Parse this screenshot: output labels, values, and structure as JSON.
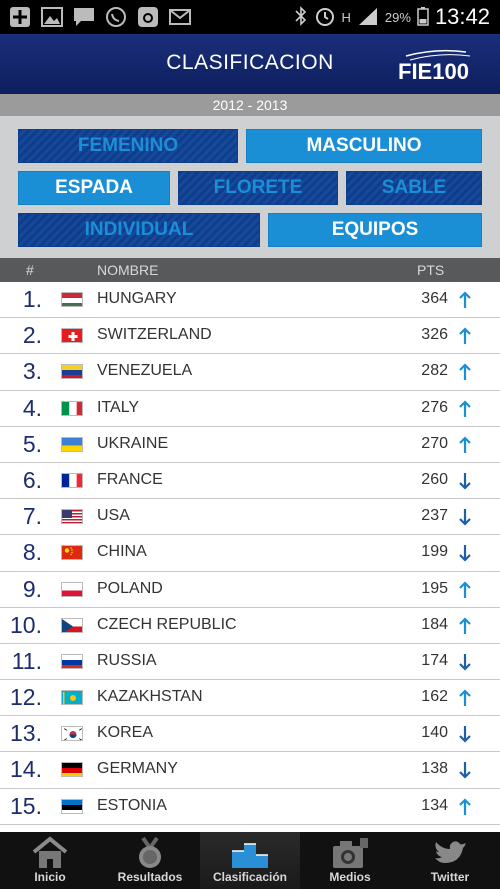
{
  "status_bar": {
    "battery": "29%",
    "time": "13:42",
    "network": "H"
  },
  "header": {
    "title": "CLASIFICACION",
    "logo_text": "FIE100"
  },
  "season": "2012 - 2013",
  "filters": {
    "gender": [
      {
        "label": "FEMENINO",
        "active": false
      },
      {
        "label": "MASCULINO",
        "active": true
      }
    ],
    "weapon": [
      {
        "label": "ESPADA",
        "active": true
      },
      {
        "label": "FLORETE",
        "active": false
      },
      {
        "label": "SABLE",
        "active": false
      }
    ],
    "type": [
      {
        "label": "INDIVIDUAL",
        "active": false
      },
      {
        "label": "EQUIPOS",
        "active": true
      }
    ]
  },
  "columns": {
    "rank": "#",
    "name": "NOMBRE",
    "points": "PTS"
  },
  "ranking": [
    {
      "rank": "1.",
      "name": "HUNGARY",
      "points": "364",
      "trend": "up",
      "flag": "hungary"
    },
    {
      "rank": "2.",
      "name": "SWITZERLAND",
      "points": "326",
      "trend": "up",
      "flag": "switzerland"
    },
    {
      "rank": "3.",
      "name": "VENEZUELA",
      "points": "282",
      "trend": "up",
      "flag": "venezuela"
    },
    {
      "rank": "4.",
      "name": "ITALY",
      "points": "276",
      "trend": "up",
      "flag": "italy"
    },
    {
      "rank": "5.",
      "name": "UKRAINE",
      "points": "270",
      "trend": "up",
      "flag": "ukraine"
    },
    {
      "rank": "6.",
      "name": "FRANCE",
      "points": "260",
      "trend": "down",
      "flag": "france"
    },
    {
      "rank": "7.",
      "name": "USA",
      "points": "237",
      "trend": "down",
      "flag": "usa"
    },
    {
      "rank": "8.",
      "name": "CHINA",
      "points": "199",
      "trend": "down",
      "flag": "china"
    },
    {
      "rank": "9.",
      "name": "POLAND",
      "points": "195",
      "trend": "up",
      "flag": "poland"
    },
    {
      "rank": "10.",
      "name": "CZECH REPUBLIC",
      "points": "184",
      "trend": "up",
      "flag": "czech"
    },
    {
      "rank": "11.",
      "name": "RUSSIA",
      "points": "174",
      "trend": "down",
      "flag": "russia"
    },
    {
      "rank": "12.",
      "name": "KAZAKHSTAN",
      "points": "162",
      "trend": "up",
      "flag": "kazakhstan"
    },
    {
      "rank": "13.",
      "name": "KOREA",
      "points": "140",
      "trend": "down",
      "flag": "korea"
    },
    {
      "rank": "14.",
      "name": "GERMANY",
      "points": "138",
      "trend": "down",
      "flag": "germany"
    },
    {
      "rank": "15.",
      "name": "ESTONIA",
      "points": "134",
      "trend": "up",
      "flag": "estonia"
    }
  ],
  "tabs": [
    {
      "label": "Inicio",
      "icon": "home-icon",
      "active": false
    },
    {
      "label": "Resultados",
      "icon": "medal-icon",
      "active": false
    },
    {
      "label": "Clasificación",
      "icon": "podium-icon",
      "active": true
    },
    {
      "label": "Medios",
      "icon": "camera-icon",
      "active": false
    },
    {
      "label": "Twitter",
      "icon": "twitter-icon",
      "active": false
    }
  ],
  "colors": {
    "accent": "#1b8fd6",
    "header": "#0e1f5e",
    "rank": "#1d2d6e",
    "up": "#1a8fd8",
    "down": "#1d5fa8"
  }
}
